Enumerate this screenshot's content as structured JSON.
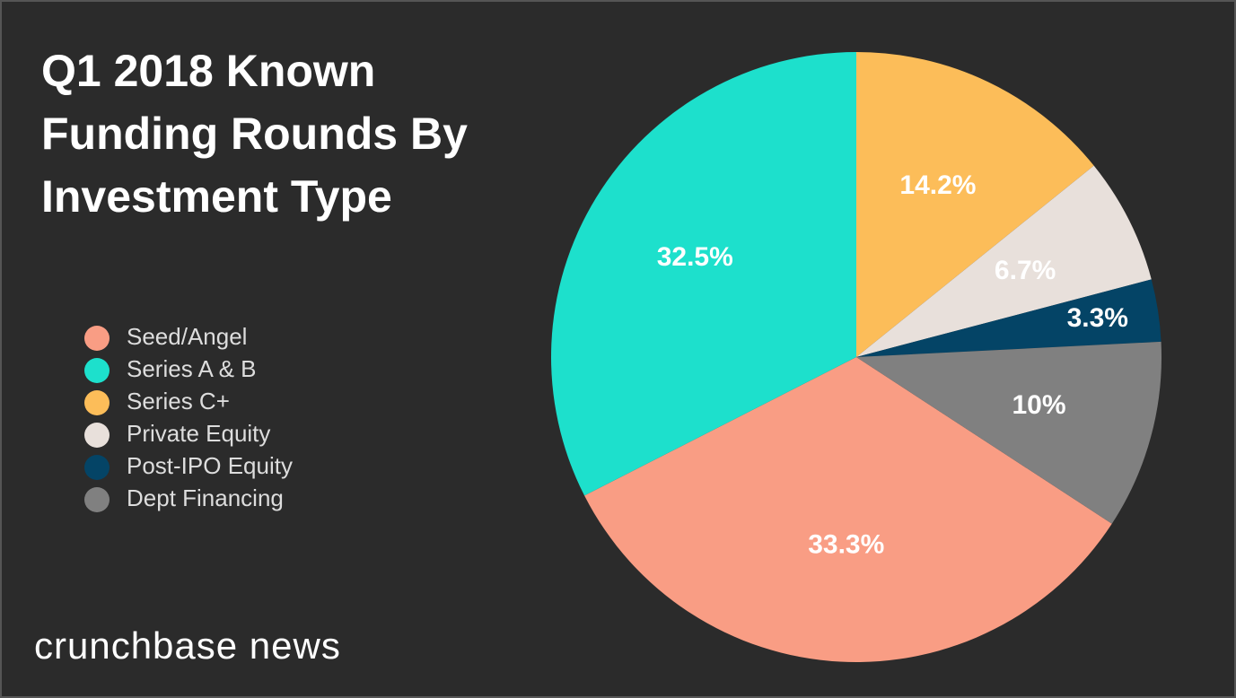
{
  "chart_data": {
    "type": "pie",
    "title": "Q1 2018 Known Funding Rounds By Investment Type",
    "brand": "crunchbase news",
    "categories": [
      "Seed/Angel",
      "Series A & B",
      "Series C+",
      "Private Equity",
      "Post-IPO Equity",
      "Dept Financing"
    ],
    "values": [
      33.3,
      32.5,
      14.2,
      6.7,
      3.3,
      10
    ],
    "value_labels": [
      "33.3%",
      "32.5%",
      "14.2%",
      "6.7%",
      "3.3%",
      "10%"
    ],
    "colors": [
      "#f99d84",
      "#1de0cc",
      "#fcbd59",
      "#e8e0db",
      "#044466",
      "#808080"
    ],
    "legend": "left"
  }
}
